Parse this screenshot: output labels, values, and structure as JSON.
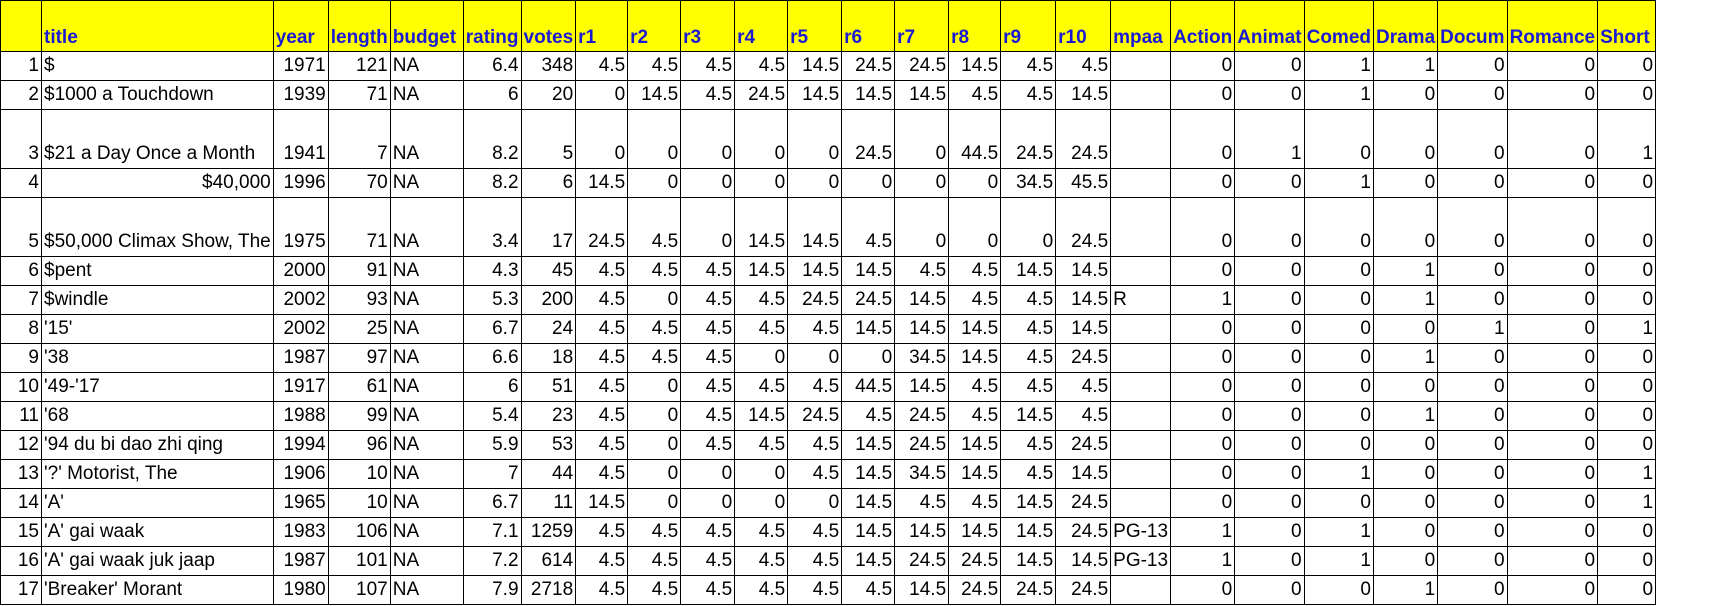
{
  "columns": [
    "",
    "title",
    "year",
    "length",
    "budget",
    "rating",
    "votes",
    "r1",
    "r2",
    "r3",
    "r4",
    "r5",
    "r6",
    "r7",
    "r8",
    "r9",
    "r10",
    "mpaa",
    "Action",
    "Animat",
    "Comed",
    "Drama",
    "Docum",
    "Romance",
    "Short"
  ],
  "rows": [
    [
      "1",
      "$",
      "1971",
      "121",
      "NA",
      "6.4",
      "348",
      "4.5",
      "4.5",
      "4.5",
      "4.5",
      "14.5",
      "24.5",
      "24.5",
      "14.5",
      "4.5",
      "4.5",
      "",
      "0",
      "0",
      "1",
      "1",
      "0",
      "0",
      "0"
    ],
    [
      "2",
      "$1000 a Touchdown",
      "1939",
      "71",
      "NA",
      "6",
      "20",
      "0",
      "14.5",
      "4.5",
      "24.5",
      "14.5",
      "14.5",
      "14.5",
      "4.5",
      "4.5",
      "14.5",
      "",
      "0",
      "0",
      "1",
      "0",
      "0",
      "0",
      "0"
    ],
    [
      "3",
      "$21 a Day Once a Month",
      "1941",
      "7",
      "NA",
      "8.2",
      "5",
      "0",
      "0",
      "0",
      "0",
      "0",
      "24.5",
      "0",
      "44.5",
      "24.5",
      "24.5",
      "",
      "0",
      "1",
      "0",
      "0",
      "0",
      "0",
      "1"
    ],
    [
      "4",
      "$40,000",
      "1996",
      "70",
      "NA",
      "8.2",
      "6",
      "14.5",
      "0",
      "0",
      "0",
      "0",
      "0",
      "0",
      "0",
      "34.5",
      "45.5",
      "",
      "0",
      "0",
      "1",
      "0",
      "0",
      "0",
      "0"
    ],
    [
      "5",
      "$50,000 Climax Show, The",
      "1975",
      "71",
      "NA",
      "3.4",
      "17",
      "24.5",
      "4.5",
      "0",
      "14.5",
      "14.5",
      "4.5",
      "0",
      "0",
      "0",
      "24.5",
      "",
      "0",
      "0",
      "0",
      "0",
      "0",
      "0",
      "0"
    ],
    [
      "6",
      "$pent",
      "2000",
      "91",
      "NA",
      "4.3",
      "45",
      "4.5",
      "4.5",
      "4.5",
      "14.5",
      "14.5",
      "14.5",
      "4.5",
      "4.5",
      "14.5",
      "14.5",
      "",
      "0",
      "0",
      "0",
      "1",
      "0",
      "0",
      "0"
    ],
    [
      "7",
      "$windle",
      "2002",
      "93",
      "NA",
      "5.3",
      "200",
      "4.5",
      "0",
      "4.5",
      "4.5",
      "24.5",
      "24.5",
      "14.5",
      "4.5",
      "4.5",
      "14.5",
      "R",
      "1",
      "0",
      "0",
      "1",
      "0",
      "0",
      "0"
    ],
    [
      "8",
      "'15'",
      "2002",
      "25",
      "NA",
      "6.7",
      "24",
      "4.5",
      "4.5",
      "4.5",
      "4.5",
      "4.5",
      "14.5",
      "14.5",
      "14.5",
      "4.5",
      "14.5",
      "",
      "0",
      "0",
      "0",
      "0",
      "1",
      "0",
      "1"
    ],
    [
      "9",
      "'38",
      "1987",
      "97",
      "NA",
      "6.6",
      "18",
      "4.5",
      "4.5",
      "4.5",
      "0",
      "0",
      "0",
      "34.5",
      "14.5",
      "4.5",
      "24.5",
      "",
      "0",
      "0",
      "0",
      "1",
      "0",
      "0",
      "0"
    ],
    [
      "10",
      "'49-'17",
      "1917",
      "61",
      "NA",
      "6",
      "51",
      "4.5",
      "0",
      "4.5",
      "4.5",
      "4.5",
      "44.5",
      "14.5",
      "4.5",
      "4.5",
      "4.5",
      "",
      "0",
      "0",
      "0",
      "0",
      "0",
      "0",
      "0"
    ],
    [
      "11",
      "'68",
      "1988",
      "99",
      "NA",
      "5.4",
      "23",
      "4.5",
      "0",
      "4.5",
      "14.5",
      "24.5",
      "4.5",
      "24.5",
      "4.5",
      "14.5",
      "4.5",
      "",
      "0",
      "0",
      "0",
      "1",
      "0",
      "0",
      "0"
    ],
    [
      "12",
      "'94 du bi dao zhi qing",
      "1994",
      "96",
      "NA",
      "5.9",
      "53",
      "4.5",
      "0",
      "4.5",
      "4.5",
      "4.5",
      "14.5",
      "24.5",
      "14.5",
      "4.5",
      "24.5",
      "",
      "0",
      "0",
      "0",
      "0",
      "0",
      "0",
      "0"
    ],
    [
      "13",
      "'?' Motorist, The",
      "1906",
      "10",
      "NA",
      "7",
      "44",
      "4.5",
      "0",
      "0",
      "0",
      "4.5",
      "14.5",
      "34.5",
      "14.5",
      "4.5",
      "14.5",
      "",
      "0",
      "0",
      "1",
      "0",
      "0",
      "0",
      "1"
    ],
    [
      "14",
      "'A'",
      "1965",
      "10",
      "NA",
      "6.7",
      "11",
      "14.5",
      "0",
      "0",
      "0",
      "0",
      "14.5",
      "4.5",
      "4.5",
      "14.5",
      "24.5",
      "",
      "0",
      "0",
      "0",
      "0",
      "0",
      "0",
      "1"
    ],
    [
      "15",
      "'A' gai waak",
      "1983",
      "106",
      "NA",
      "7.1",
      "1259",
      "4.5",
      "4.5",
      "4.5",
      "4.5",
      "4.5",
      "14.5",
      "14.5",
      "14.5",
      "14.5",
      "24.5",
      "PG-13",
      "1",
      "0",
      "1",
      "0",
      "0",
      "0",
      "0"
    ],
    [
      "16",
      "'A' gai waak juk jaap",
      "1987",
      "101",
      "NA",
      "7.2",
      "614",
      "4.5",
      "4.5",
      "4.5",
      "4.5",
      "4.5",
      "14.5",
      "24.5",
      "24.5",
      "14.5",
      "14.5",
      "PG-13",
      "1",
      "0",
      "1",
      "0",
      "0",
      "0",
      "0"
    ],
    [
      "17",
      "'Breaker' Morant",
      "1980",
      "107",
      "NA",
      "7.9",
      "2718",
      "4.5",
      "4.5",
      "4.5",
      "4.5",
      "4.5",
      "4.5",
      "14.5",
      "24.5",
      "24.5",
      "24.5",
      "",
      "0",
      "0",
      "0",
      "1",
      "0",
      "0",
      "0"
    ]
  ]
}
